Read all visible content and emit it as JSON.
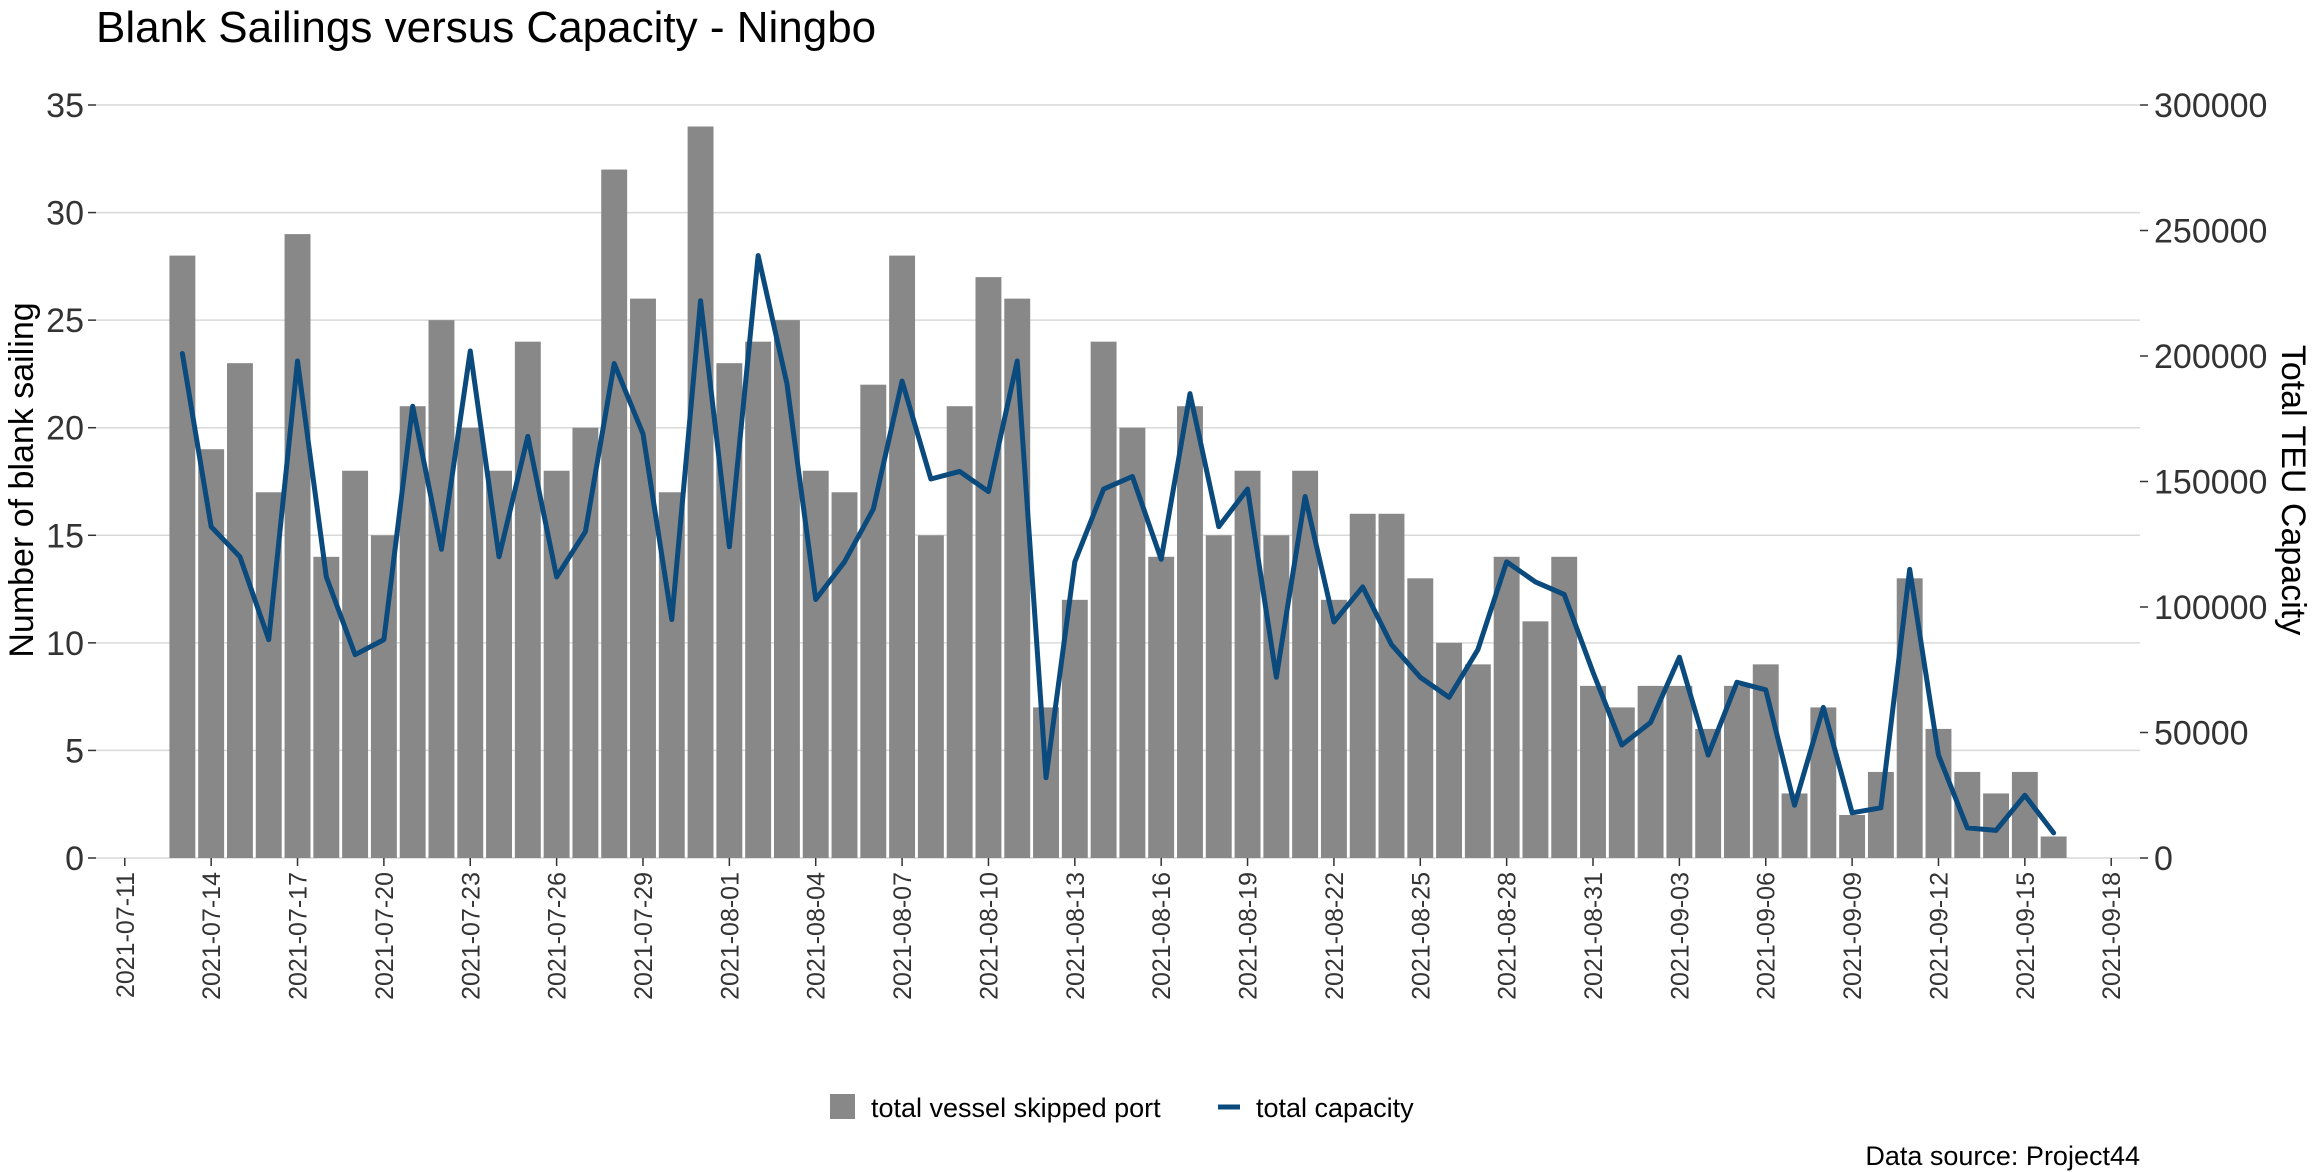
{
  "chart_data": {
    "type": "bar",
    "title": "Blank Sailings versus Capacity - Ningbo",
    "ylabel_left": "Number of blank sailing",
    "ylabel_right": "Total TEU Capacity",
    "ylim_left": [
      0,
      35
    ],
    "ylim_right": [
      0,
      300000
    ],
    "yticks_left": [
      0,
      5,
      10,
      15,
      20,
      25,
      30,
      35
    ],
    "yticks_right": [
      0,
      50000,
      100000,
      150000,
      200000,
      250000,
      300000
    ],
    "yticks_right_labels": [
      "0",
      "50000",
      "100000",
      "150000",
      "200000",
      "250000",
      "300000"
    ],
    "x_start": "2021-07-13",
    "x_tick_labels": [
      "2021-07-11",
      "2021-07-14",
      "2021-07-17",
      "2021-07-20",
      "2021-07-23",
      "2021-07-26",
      "2021-07-29",
      "2021-08-01",
      "2021-08-04",
      "2021-08-07",
      "2021-08-10",
      "2021-08-13",
      "2021-08-16",
      "2021-08-19",
      "2021-08-22",
      "2021-08-25",
      "2021-08-28",
      "2021-08-31",
      "2021-09-03",
      "2021-09-06",
      "2021-09-09",
      "2021-09-12",
      "2021-09-15",
      "2021-09-18"
    ],
    "x_tick_offsets": [
      -2,
      1,
      4,
      7,
      10,
      13,
      16,
      19,
      22,
      25,
      28,
      31,
      34,
      37,
      40,
      43,
      46,
      49,
      52,
      55,
      58,
      61,
      64,
      67
    ],
    "x_range": [
      -3,
      68
    ],
    "series": [
      {
        "name": "total vessel skipped port",
        "type": "bar",
        "axis": "left",
        "color": "#888888",
        "values": [
          28,
          19,
          23,
          17,
          29,
          14,
          18,
          15,
          21,
          25,
          20,
          18,
          24,
          18,
          20,
          32,
          26,
          17,
          34,
          23,
          24,
          25,
          18,
          17,
          22,
          28,
          15,
          21,
          27,
          26,
          7,
          12,
          24,
          20,
          14,
          21,
          15,
          18,
          15,
          18,
          12,
          16,
          16,
          13,
          10,
          9,
          14,
          11,
          14,
          8,
          7,
          8,
          8,
          6,
          8,
          9,
          3,
          7,
          2,
          4,
          13,
          6,
          4,
          3,
          4,
          1
        ]
      },
      {
        "name": "total capacity",
        "type": "line",
        "axis": "right",
        "color": "#0b4a7d",
        "values": [
          201000,
          132000,
          120000,
          87000,
          198000,
          112000,
          81000,
          87000,
          180000,
          123000,
          202000,
          120000,
          168000,
          112000,
          130000,
          197000,
          169000,
          95000,
          222000,
          124000,
          240000,
          189000,
          103000,
          118000,
          139000,
          190000,
          151000,
          154000,
          146000,
          198000,
          32000,
          118000,
          147000,
          152000,
          119000,
          185000,
          132000,
          147000,
          72000,
          144000,
          94000,
          108000,
          85000,
          72000,
          64000,
          83000,
          118000,
          110000,
          105000,
          74000,
          45000,
          54000,
          80000,
          41000,
          70000,
          67000,
          21000,
          60000,
          18000,
          20000,
          115000,
          41000,
          12000,
          11000,
          25000,
          10000
        ]
      }
    ],
    "legend": {
      "position": "bottom",
      "bar_label": "total vessel skipped port",
      "line_label": "total capacity"
    },
    "caption": "Data source: Project44"
  }
}
